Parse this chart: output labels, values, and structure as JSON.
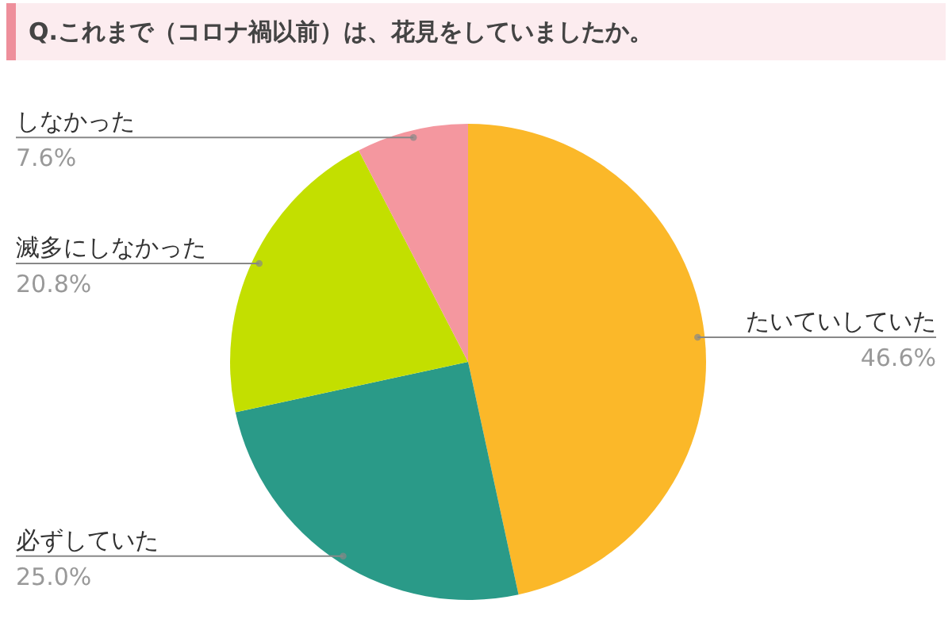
{
  "chart_data": {
    "type": "pie",
    "title": "Q.これまで（コロナ禍以前）は、花見をしていましたか。",
    "categories": [
      "たいていしていた",
      "必ずしていた",
      "滅多にしなかった",
      "しなかった"
    ],
    "values": [
      46.6,
      25.0,
      20.8,
      7.6
    ],
    "value_labels": [
      "46.6%",
      "25.0%",
      "20.8%",
      "7.6%"
    ],
    "colors": [
      "#fbb829",
      "#2a9a88",
      "#c3df00",
      "#f4979f"
    ]
  }
}
